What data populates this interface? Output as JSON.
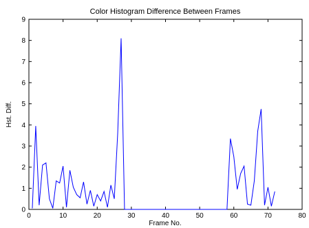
{
  "chart_data": {
    "type": "line",
    "title": "Color Histogram Difference Between Frames",
    "xlabel": "Frame No.",
    "ylabel": "Hst. Diff.",
    "xlim": [
      0,
      80
    ],
    "ylim": [
      0,
      9
    ],
    "xticks": [
      0,
      10,
      20,
      30,
      40,
      50,
      60,
      70,
      80
    ],
    "yticks": [
      0,
      1,
      2,
      3,
      4,
      5,
      6,
      7,
      8,
      9
    ],
    "grid": false,
    "legend": "none",
    "series": [
      {
        "color": "#0000ff",
        "x": [
          1,
          2,
          3,
          4,
          5,
          6,
          7,
          8,
          9,
          10,
          11,
          12,
          13,
          14,
          15,
          16,
          17,
          18,
          19,
          20,
          21,
          22,
          23,
          24,
          25,
          26,
          27,
          28,
          29,
          30,
          31,
          32,
          33,
          34,
          35,
          36,
          37,
          38,
          39,
          40,
          41,
          42,
          43,
          44,
          45,
          46,
          47,
          48,
          49,
          50,
          51,
          52,
          53,
          54,
          55,
          56,
          57,
          58,
          59,
          60,
          61,
          62,
          63,
          64,
          65,
          66,
          67,
          68,
          69,
          70,
          71,
          72
        ],
        "y": [
          0.05,
          3.95,
          0.2,
          2.1,
          2.2,
          0.5,
          0.05,
          1.35,
          1.25,
          2.05,
          0.1,
          1.85,
          1.05,
          0.7,
          0.55,
          1.3,
          0.25,
          0.9,
          0.15,
          0.7,
          0.4,
          0.85,
          0.1,
          1.15,
          0.5,
          3.6,
          8.1,
          0,
          0,
          0,
          0,
          0,
          0,
          0,
          0,
          0,
          0,
          0,
          0,
          0,
          0,
          0,
          0,
          0,
          0,
          0,
          0,
          0,
          0,
          0,
          0,
          0,
          0,
          0,
          0,
          0,
          0,
          0,
          3.35,
          2.5,
          0.95,
          1.7,
          2.05,
          0.25,
          0.2,
          1.35,
          3.7,
          4.75,
          0.2,
          1.05,
          0.15,
          0.85
        ]
      }
    ]
  }
}
